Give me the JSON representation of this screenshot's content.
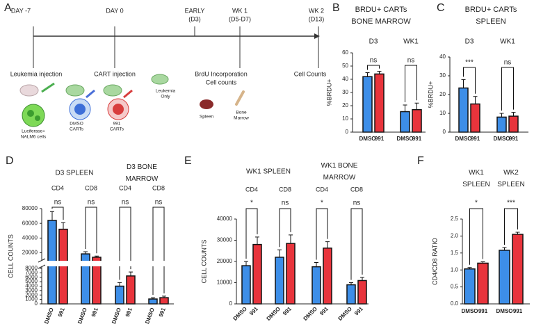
{
  "timeline": {
    "panel": "A",
    "ticks": [
      [
        "DAY -7"
      ],
      [
        "DAY 0"
      ],
      [
        "EARLY",
        "(D3)"
      ],
      [
        "WK 1",
        "(D5-D7)"
      ],
      [
        "WK 2",
        "(D13)"
      ]
    ],
    "steps": [
      [
        "Leukemia injection"
      ],
      [
        "CART injection"
      ],
      [
        "BrdU Incorporation",
        "Cell counts"
      ],
      [
        "Cell Counts"
      ]
    ],
    "icon_labels": [
      [
        "Luciferase+",
        "NALM6 cells"
      ],
      [
        "DMSO",
        "CARTs"
      ],
      [
        "991",
        "CARTs"
      ],
      [
        "Leukemia",
        "Only"
      ],
      [
        "Spleen"
      ],
      [
        "Bone",
        "Marrow"
      ]
    ]
  },
  "chart_data": [
    {
      "panel": "B",
      "type": "bar",
      "title": [
        "BRDU+ CARTs",
        "BONE MARROW"
      ],
      "ylabel": "%BRDU+",
      "ylim": [
        0,
        60
      ],
      "yticks": [
        0,
        10,
        20,
        30,
        40,
        50,
        60
      ],
      "series": [
        {
          "name": "DMSO",
          "color": "#3d8ee8"
        },
        {
          "name": "991",
          "color": "#e8343c"
        }
      ],
      "groups": [
        {
          "label": [
            "D3"
          ],
          "clusters": [
            {
              "values": [
                42,
                44
              ],
              "errors": [
                3,
                2
              ],
              "significance": "ns"
            }
          ]
        },
        {
          "label": [
            "WK1"
          ],
          "clusters": [
            {
              "values": [
                15.5,
                17
              ],
              "errors": [
                5,
                5
              ],
              "significance": "ns"
            }
          ]
        }
      ]
    },
    {
      "panel": "C",
      "type": "bar",
      "title": [
        "BRDU+ CARTs",
        "SPLEEN"
      ],
      "ylabel": "%BRDU+",
      "ylim": [
        0,
        40
      ],
      "yticks": [
        0,
        10,
        20,
        30,
        40
      ],
      "series": [
        {
          "name": "DMSO",
          "color": "#3d8ee8"
        },
        {
          "name": "991",
          "color": "#e8343c"
        }
      ],
      "groups": [
        {
          "label": [
            "D3"
          ],
          "clusters": [
            {
              "values": [
                23.5,
                15
              ],
              "errors": [
                4.5,
                4
              ],
              "significance": "***"
            }
          ]
        },
        {
          "label": [
            "WK1"
          ],
          "clusters": [
            {
              "values": [
                8,
                8.5
              ],
              "errors": [
                2,
                2
              ],
              "significance": "ns"
            }
          ]
        }
      ]
    },
    {
      "panel": "D",
      "type": "bar",
      "ylabel": "CELL COUNTS",
      "ylim": [
        0,
        80000
      ],
      "ybreak": [
        8000,
        12000
      ],
      "yticks": [
        0,
        1000,
        2000,
        3000,
        4000,
        5000,
        6000,
        7000,
        8000,
        20000,
        40000,
        60000,
        80000
      ],
      "series": [
        {
          "name": "DMSO",
          "color": "#3d8ee8"
        },
        {
          "name": "991",
          "color": "#e8343c"
        }
      ],
      "groups": [
        {
          "label": [
            "D3 SPLEEN"
          ],
          "clusters": [
            {
              "label": "CD4",
              "values": [
                64000,
                52000
              ],
              "errors": [
                12000,
                9000
              ],
              "significance": "ns"
            },
            {
              "label": "CD8",
              "values": [
                18500,
                14000
              ],
              "errors": [
                3000,
                1500
              ],
              "significance": "ns"
            }
          ]
        },
        {
          "label": [
            "D3 BONE",
            "MARROW"
          ],
          "clusters": [
            {
              "label": "CD4",
              "values": [
                4000,
                6300
              ],
              "errors": [
                800,
                900
              ],
              "significance": "ns"
            },
            {
              "label": "CD8",
              "values": [
                1100,
                1400
              ],
              "errors": [
                300,
                350
              ],
              "significance": "ns"
            }
          ]
        }
      ]
    },
    {
      "panel": "E",
      "type": "bar",
      "ylabel": "CELL COUNTS",
      "ylim": [
        0,
        40000
      ],
      "yticks": [
        0,
        10000,
        20000,
        30000,
        40000
      ],
      "series": [
        {
          "name": "DMSO",
          "color": "#3d8ee8"
        },
        {
          "name": "991",
          "color": "#e8343c"
        }
      ],
      "groups": [
        {
          "label": [
            "WK1 SPLEEN"
          ],
          "clusters": [
            {
              "label": "CD4",
              "values": [
                18000,
                28000
              ],
              "errors": [
                2000,
                3500
              ],
              "significance": "*"
            },
            {
              "label": "CD8",
              "values": [
                22000,
                28500
              ],
              "errors": [
                3500,
                4000
              ],
              "significance": "ns"
            }
          ]
        },
        {
          "label": [
            "WK1 BONE",
            "MARROW"
          ],
          "clusters": [
            {
              "label": "CD4",
              "values": [
                17500,
                26300
              ],
              "errors": [
                2000,
                3000
              ],
              "significance": "*"
            },
            {
              "label": "CD8",
              "values": [
                9000,
                11000
              ],
              "errors": [
                1000,
                1500
              ],
              "significance": "ns"
            }
          ]
        }
      ]
    },
    {
      "panel": "F",
      "type": "bar",
      "ylabel": "CD4/CD8 RATIO",
      "ylim": [
        0,
        2.5
      ],
      "yticks": [
        {
          "value": 0,
          "label": "0.0"
        },
        0.5,
        {
          "value": 1,
          "label": "1.0"
        },
        1.5,
        {
          "value": 2,
          "label": "2.0"
        },
        2.5
      ],
      "series": [
        {
          "name": "DMSO",
          "color": "#3d8ee8"
        },
        {
          "name": "991",
          "color": "#e8343c"
        }
      ],
      "groups": [
        {
          "label": [
            "WK1",
            "SPLEEN"
          ],
          "clusters": [
            {
              "values": [
                1.03,
                1.2
              ],
              "errors": [
                0.04,
                0.04
              ],
              "significance": "*"
            }
          ]
        },
        {
          "label": [
            "WK2",
            "SPLEEN"
          ],
          "clusters": [
            {
              "values": [
                1.58,
                2.05
              ],
              "errors": [
                0.08,
                0.06
              ],
              "significance": "***"
            }
          ]
        }
      ]
    }
  ]
}
